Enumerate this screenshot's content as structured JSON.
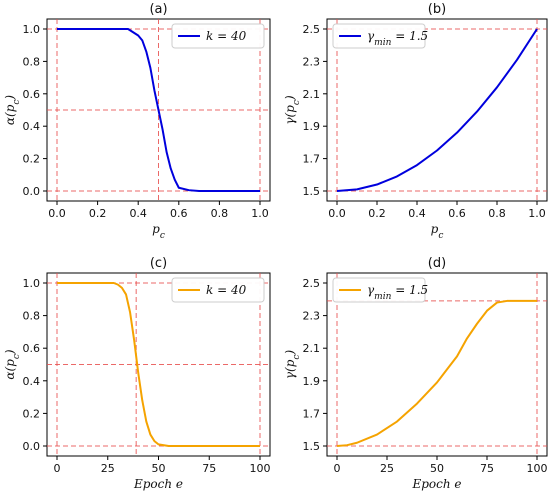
{
  "chart_data": [
    {
      "type": "line",
      "panel_label": "(a)",
      "xlabel": "p_c",
      "ylabel": "α(p_c)",
      "xlim": [
        0,
        1
      ],
      "ylim": [
        0,
        1
      ],
      "xticks": [
        "0.0",
        "0.2",
        "0.4",
        "0.6",
        "0.8",
        "1.0"
      ],
      "yticks": [
        "0.0",
        "0.2",
        "0.4",
        "0.6",
        "0.8",
        "1.0"
      ],
      "legend": {
        "position": "top-right",
        "text": "k = 40"
      },
      "color": "#0000dd",
      "series": [
        {
          "name": "k = 40",
          "x": [
            0,
            0.1,
            0.2,
            0.3,
            0.35,
            0.4,
            0.42,
            0.44,
            0.46,
            0.48,
            0.5,
            0.52,
            0.54,
            0.56,
            0.58,
            0.6,
            0.65,
            0.7,
            0.8,
            0.9,
            1.0
          ],
          "y": [
            1.0,
            1.0,
            1.0,
            1.0,
            1.0,
            0.96,
            0.93,
            0.86,
            0.76,
            0.62,
            0.5,
            0.38,
            0.24,
            0.14,
            0.07,
            0.02,
            0.005,
            0.0,
            0.0,
            0.0,
            0.0
          ]
        }
      ],
      "reference_lines": {
        "x": [
          0,
          0.5,
          1
        ],
        "y": [
          0,
          0.5,
          1
        ]
      }
    },
    {
      "type": "line",
      "panel_label": "(b)",
      "xlabel": "p_c",
      "ylabel": "γ(p_c)",
      "xlim": [
        0,
        1
      ],
      "ylim": [
        1.5,
        2.5
      ],
      "xticks": [
        "0.0",
        "0.2",
        "0.4",
        "0.6",
        "0.8",
        "1.0"
      ],
      "yticks": [
        "1.5",
        "1.7",
        "1.9",
        "2.1",
        "2.3",
        "2.5"
      ],
      "legend": {
        "position": "top-left",
        "text": "γmin = 1.5"
      },
      "color": "#0000dd",
      "series": [
        {
          "name": "γmin = 1.5",
          "x": [
            0,
            0.1,
            0.2,
            0.3,
            0.4,
            0.5,
            0.6,
            0.7,
            0.8,
            0.9,
            1.0
          ],
          "y": [
            1.5,
            1.51,
            1.54,
            1.59,
            1.66,
            1.75,
            1.86,
            1.99,
            2.14,
            2.31,
            2.5
          ]
        }
      ],
      "reference_lines": {
        "x": [
          0,
          1
        ],
        "y": [
          1.5,
          2.5
        ]
      }
    },
    {
      "type": "line",
      "panel_label": "(c)",
      "xlabel": "Epoch e",
      "ylabel": "α(p_c)",
      "xlim": [
        0,
        100
      ],
      "ylim": [
        0,
        1
      ],
      "xticks": [
        "0",
        "25",
        "50",
        "75",
        "100"
      ],
      "yticks": [
        "0.0",
        "0.2",
        "0.4",
        "0.6",
        "0.8",
        "1.0"
      ],
      "legend": {
        "position": "top-right",
        "text": "k = 40"
      },
      "color": "#f5a300",
      "series": [
        {
          "name": "k = 40",
          "x": [
            0,
            10,
            20,
            28,
            30,
            32,
            34,
            36,
            38,
            40,
            42,
            44,
            46,
            48,
            50,
            55,
            60,
            80,
            100
          ],
          "y": [
            1.0,
            1.0,
            1.0,
            1.0,
            0.99,
            0.97,
            0.93,
            0.82,
            0.65,
            0.45,
            0.28,
            0.15,
            0.07,
            0.03,
            0.01,
            0.0,
            0.0,
            0.0,
            0.0
          ]
        }
      ],
      "reference_lines": {
        "x": [
          0,
          39,
          100
        ],
        "y": [
          0,
          0.5,
          1
        ]
      }
    },
    {
      "type": "line",
      "panel_label": "(d)",
      "xlabel": "Epoch e",
      "ylabel": "γ(p_c)",
      "xlim": [
        0,
        100
      ],
      "ylim": [
        1.5,
        2.5
      ],
      "xticks": [
        "0",
        "25",
        "50",
        "75",
        "100"
      ],
      "yticks": [
        "1.5",
        "1.7",
        "1.9",
        "2.1",
        "2.3",
        "2.5"
      ],
      "legend": {
        "position": "top-left",
        "text": "γmin = 1.5"
      },
      "color": "#f5a300",
      "series": [
        {
          "name": "γmin = 1.5",
          "x": [
            0,
            5,
            10,
            20,
            30,
            40,
            50,
            55,
            60,
            65,
            70,
            75,
            80,
            85,
            90,
            100
          ],
          "y": [
            1.5,
            1.505,
            1.52,
            1.57,
            1.65,
            1.76,
            1.89,
            1.97,
            2.05,
            2.16,
            2.25,
            2.33,
            2.38,
            2.39,
            2.39,
            2.39
          ]
        }
      ],
      "reference_lines": {
        "x": [
          0,
          100
        ],
        "y": [
          1.5,
          2.39
        ]
      }
    }
  ]
}
